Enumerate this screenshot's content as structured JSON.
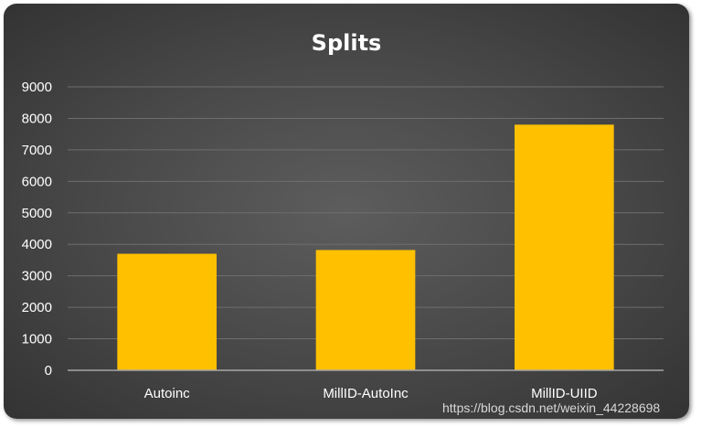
{
  "chart_data": {
    "type": "bar",
    "title": "Splits",
    "categories": [
      "Autoinc",
      "MillID-AutoInc",
      "MillID-UIID"
    ],
    "values": [
      3700,
      3820,
      7800
    ],
    "ylim": [
      0,
      9000
    ],
    "yticks": [
      0,
      1000,
      2000,
      3000,
      4000,
      5000,
      6000,
      7000,
      8000,
      9000
    ],
    "grid": true,
    "legend": "none",
    "colors": {
      "bar": "#FFC000",
      "gridline": "#6e6e6e",
      "axis": "#a6a6a6",
      "background": "#474747",
      "text": "#ffffff"
    }
  },
  "watermark": "https://blog.csdn.net/weixin_44228698"
}
